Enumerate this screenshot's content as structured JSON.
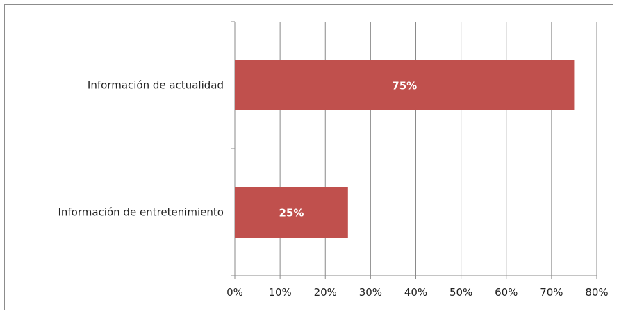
{
  "chart_data": {
    "type": "bar",
    "orientation": "horizontal",
    "categories": [
      "Información de actualidad",
      "Información de entretenimiento"
    ],
    "values": [
      75,
      25
    ],
    "data_labels": [
      "75%",
      "25%"
    ],
    "xlim": [
      0,
      80
    ],
    "x_ticks": [
      0,
      10,
      20,
      30,
      40,
      50,
      60,
      70,
      80
    ],
    "x_tick_labels": [
      "0%",
      "10%",
      "20%",
      "30%",
      "40%",
      "50%",
      "60%",
      "70%",
      "80%"
    ],
    "title": "",
    "xlabel": "",
    "ylabel": "",
    "grid": "vertical",
    "legend": "none",
    "bar_color": "#c0504d"
  }
}
